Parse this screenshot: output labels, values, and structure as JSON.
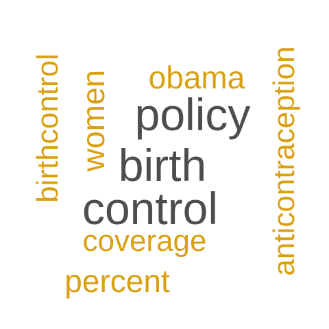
{
  "words": [
    {
      "text": "policy",
      "color": "#4d4d4d",
      "rotated": false
    },
    {
      "text": "birth",
      "color": "#4d4d4d",
      "rotated": false
    },
    {
      "text": "control",
      "color": "#4d4d4d",
      "rotated": false
    },
    {
      "text": "obama",
      "color": "#d9a011",
      "rotated": false
    },
    {
      "text": "coverage",
      "color": "#d9a011",
      "rotated": false
    },
    {
      "text": "percent",
      "color": "#d9a011",
      "rotated": false
    },
    {
      "text": "women",
      "color": "#d9a011",
      "rotated": true
    },
    {
      "text": "birthcontrol",
      "color": "#d9a011",
      "rotated": true
    },
    {
      "text": "anticontraception",
      "color": "#d9a011",
      "rotated": true
    }
  ]
}
